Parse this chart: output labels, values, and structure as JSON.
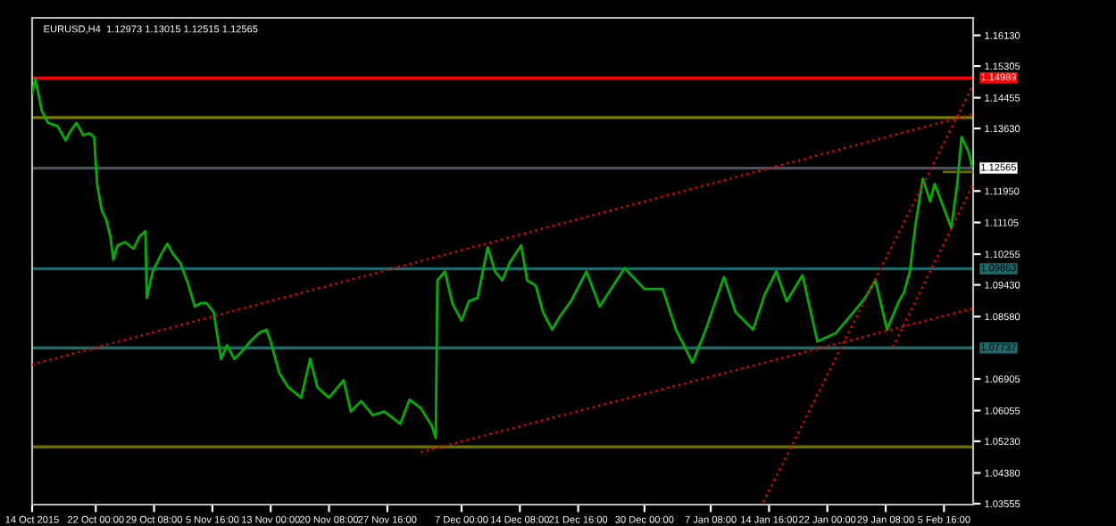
{
  "chart_data": {
    "type": "line",
    "title": "EURUSD,H4  1.12973 1.13015 1.12515 1.12565",
    "xlim": [
      "2015-10-14T00:00",
      "2016-02-09T08:00"
    ],
    "ylim": [
      1.0353,
      1.166
    ],
    "xticks": [
      {
        "value": "2015-10-14T00:00",
        "label": "14 Oct 2015"
      },
      {
        "value": "2015-10-22T00:00",
        "label": "22 Oct 00:00"
      },
      {
        "value": "2015-10-29T08:00",
        "label": "29 Oct 08:00"
      },
      {
        "value": "2015-11-05T16:00",
        "label": "5 Nov 16:00"
      },
      {
        "value": "2015-11-13T00:00",
        "label": "13 Nov 00:00"
      },
      {
        "value": "2015-11-20T08:00",
        "label": "20 Nov 08:00"
      },
      {
        "value": "2015-11-27T16:00",
        "label": "27 Nov 16:00"
      },
      {
        "value": "2015-12-07T00:00",
        "label": "7 Dec 00:00"
      },
      {
        "value": "2015-12-14T08:00",
        "label": "14 Dec 08:00"
      },
      {
        "value": "2015-12-21T16:00",
        "label": "21 Dec 16:00"
      },
      {
        "value": "2015-12-30T00:00",
        "label": "30 Dec 00:00"
      },
      {
        "value": "2016-01-07T08:00",
        "label": "7 Jan 08:00"
      },
      {
        "value": "2016-01-14T16:00",
        "label": "14 Jan 16:00"
      },
      {
        "value": "2016-01-22T00:00",
        "label": "22 Jan 00:00"
      },
      {
        "value": "2016-01-29T08:00",
        "label": "29 Jan 08:00"
      },
      {
        "value": "2016-02-05T16:00",
        "label": "5 Feb 16:00"
      }
    ],
    "yticks": [
      {
        "value": 1.1613,
        "label": "1.16130"
      },
      1.15305,
      1.14455,
      {
        "value": 1.1363,
        "label": "1.13630"
      },
      {
        "value": 1.1195,
        "label": "1.11950"
      },
      1.11105,
      1.10255,
      {
        "value": 1.0943,
        "label": "1.09430"
      },
      {
        "value": 1.0858,
        "label": "1.08580"
      },
      1.06905,
      1.06055,
      {
        "value": 1.0523,
        "label": "1.05230"
      },
      {
        "value": 1.0438,
        "label": "1.04380"
      },
      1.03555
    ],
    "grid": false,
    "legend": false,
    "series": [
      {
        "color": "#00b000",
        "line_style": "solid",
        "x": [
          "2015-10-14T00:00",
          "2015-10-14T10:00",
          "2015-10-15T05:00",
          "2015-10-16T00:00",
          "2015-10-17T05:00",
          "2015-10-18T05:00",
          "2015-10-18T19:00",
          "2015-10-19T14:00",
          "2015-10-20T10:00",
          "2015-10-21T05:00",
          "2015-10-21T19:00",
          "2015-10-22T04:00",
          "2015-10-22T18:00",
          "2015-10-23T07:00",
          "2015-10-23T20:00",
          "2015-10-24T05:00",
          "2015-10-24T18:00",
          "2015-10-25T16:00",
          "2015-10-26T18:00",
          "2015-10-27T12:00",
          "2015-10-28T06:00",
          "2015-10-28T10:00",
          "2015-10-29T04:00",
          "2015-10-30T06:00",
          "2015-10-31T00:00",
          "2015-10-31T17:00",
          "2015-11-01T15:00",
          "2015-11-02T13:00",
          "2015-11-03T11:00",
          "2015-11-04T05:00",
          "2015-11-04T22:00",
          "2015-11-05T20:00",
          "2015-11-06T18:00",
          "2015-11-07T12:00",
          "2015-11-08T10:00",
          "2015-11-09T12:00",
          "2015-11-10T10:00",
          "2015-11-11T13:00",
          "2015-11-12T11:00",
          "2015-11-13T00:00",
          "2015-11-14T02:00",
          "2015-11-15T05:00",
          "2015-11-16T20:00",
          "2015-11-17T23:00",
          "2015-11-18T21:00",
          "2015-11-20T08:00",
          "2015-11-22T04:00",
          "2015-11-23T02:00",
          "2015-11-24T09:00",
          "2015-11-25T20:00",
          "2015-11-27T07:00",
          "2015-11-29T07:00",
          "2015-11-30T11:00",
          "2015-12-01T21:00",
          "2015-12-03T06:00",
          "2015-12-03T18:00",
          "2015-12-03T23:00",
          "2015-12-04T22:00",
          "2015-12-05T20:00",
          "2015-12-07T00:00",
          "2015-12-07T22:00",
          "2015-12-09T00:00",
          "2015-12-10T07:00",
          "2015-12-11T05:00",
          "2015-12-12T03:00",
          "2015-12-13T01:00",
          "2015-12-14T12:00",
          "2015-12-15T06:00",
          "2015-12-16T08:00",
          "2015-12-17T06:00",
          "2015-12-18T09:00",
          "2015-12-19T11:00",
          "2015-12-20T18:00",
          "2015-12-22T17:00",
          "2015-12-24T09:00",
          "2015-12-27T12:00",
          "2015-12-30T00:00",
          "2016-01-01T07:00",
          "2016-01-02T23:00",
          "2016-01-05T01:00",
          "2016-01-06T17:00",
          "2016-01-09T00:00",
          "2016-01-10T11:00",
          "2016-01-12T16:00",
          "2016-01-14T03:00",
          "2016-01-15T14:00",
          "2016-01-16T21:00",
          "2016-01-18T21:00",
          "2016-01-20T18:00",
          "2016-01-23T02:00",
          "2016-01-25T07:00",
          "2016-01-26T18:00",
          "2016-01-28T01:00",
          "2016-01-29T12:00",
          "2016-01-31T00:00",
          "2016-01-31T15:00",
          "2016-02-01T09:00",
          "2016-02-02T02:00",
          "2016-02-03T00:00",
          "2016-02-03T22:00",
          "2016-02-04T12:00",
          "2016-02-06T14:00",
          "2016-02-07T08:00",
          "2016-02-07T21:00",
          "2016-02-08T19:00",
          "2016-02-09T04:00"
        ],
        "values": [
          1.1458,
          1.1496,
          1.1411,
          1.1378,
          1.1369,
          1.1331,
          1.1355,
          1.1378,
          1.1345,
          1.135,
          1.134,
          1.1214,
          1.1143,
          1.112,
          1.1073,
          1.1011,
          1.1049,
          1.1058,
          1.104,
          1.1073,
          1.1087,
          1.0908,
          1.0979,
          1.1026,
          1.1054,
          1.1026,
          1.1002,
          1.095,
          1.0885,
          1.0894,
          1.0894,
          1.087,
          1.0744,
          1.0781,
          1.0744,
          1.0767,
          1.0791,
          1.0814,
          1.0823,
          1.0791,
          1.0706,
          1.0668,
          1.064,
          1.0744,
          1.0668,
          1.064,
          1.0687,
          1.0603,
          1.0631,
          1.0593,
          1.0603,
          1.057,
          1.0635,
          1.0612,
          1.0565,
          1.0532,
          1.0955,
          1.0979,
          1.0894,
          1.0847,
          1.0899,
          1.0908,
          1.1044,
          1.0979,
          1.0955,
          1.1002,
          1.1049,
          1.0955,
          1.0941,
          1.087,
          1.0823,
          1.0861,
          1.0899,
          1.0979,
          1.0885,
          1.0988,
          1.0932,
          1.0932,
          1.0823,
          1.0734,
          1.0823,
          1.0964,
          1.087,
          1.0823,
          1.0917,
          1.0979,
          1.0899,
          1.0969,
          1.0791,
          1.0814,
          1.087,
          1.0908,
          1.0955,
          1.0823,
          1.0899,
          1.0922,
          1.0979,
          1.1105,
          1.1228,
          1.1167,
          1.1214,
          1.1096,
          1.1214,
          1.134,
          1.1298,
          1.1261
        ]
      },
      {
        "color": "#e00000",
        "line_style": "dotted",
        "x": [
          "2015-10-14T00:00",
          "2016-02-09T08:00"
        ],
        "values": [
          1.0729,
          1.1402
        ]
      },
      {
        "color": "#e00000",
        "line_style": "dotted",
        "x": [
          "2015-12-01T21:00",
          "2016-02-09T08:00"
        ],
        "values": [
          1.0494,
          1.088
        ]
      },
      {
        "color": "#e00000",
        "line_style": "dotted",
        "x": [
          "2016-01-13T23:00",
          "2016-02-09T08:00"
        ],
        "values": [
          1.036,
          1.148
        ]
      },
      {
        "color": "#e00000",
        "line_style": "dotted",
        "x": [
          "2016-01-30T06:00",
          "2016-02-09T08:00"
        ],
        "values": [
          1.0776,
          1.1214
        ]
      },
      {
        "color": "#6b6b00",
        "line_style": "solid",
        "x": [
          "2016-02-05T16:00",
          "2016-02-09T08:00"
        ],
        "values": [
          1.1246,
          1.1246
        ]
      }
    ],
    "ref_lines": [
      {
        "axis": "y",
        "value": 1.14989,
        "label": "1.14989",
        "color": "#ff0000"
      },
      {
        "axis": "y",
        "value": 1.1392,
        "label": null,
        "color": "#7a7a00"
      },
      {
        "axis": "y",
        "value": 1.12565,
        "label": "1.12565",
        "color": "#4a5260"
      },
      {
        "axis": "y",
        "value": 1.09863,
        "label": "1.09863",
        "color": "#1e6a6a"
      },
      {
        "axis": "y",
        "value": 1.07737,
        "label": "1.07737",
        "color": "#1e6a6a"
      },
      {
        "axis": "y",
        "value": 1.0508,
        "label": null,
        "color": "#6b6b00"
      }
    ]
  }
}
